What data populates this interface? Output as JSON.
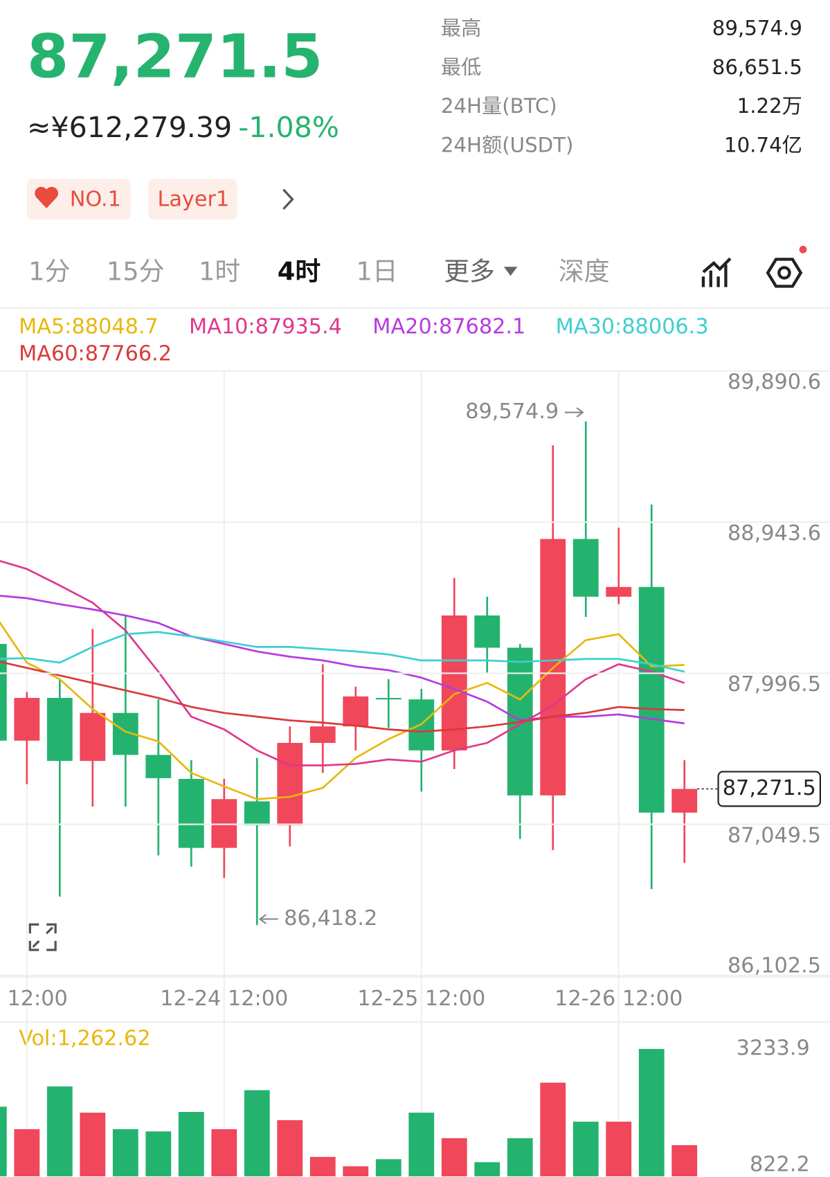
{
  "header": {
    "price": "87,271.5",
    "cny": "≈¥612,279.39",
    "change": "-1.08%",
    "stats": [
      {
        "label": "最高",
        "value": "89,574.9"
      },
      {
        "label": "最低",
        "value": "86,651.5"
      },
      {
        "label": "24H量(BTC)",
        "value": "1.22万"
      },
      {
        "label": "24H额(USDT)",
        "value": "10.74亿"
      }
    ],
    "tags": [
      "NO.1",
      "Layer1"
    ]
  },
  "tabs": [
    "1分",
    "15分",
    "1时",
    "4时",
    "1日",
    "更多",
    "深度"
  ],
  "chart_data": {
    "type": "candlestick",
    "categories": [
      null,
      "12:00",
      null,
      null,
      null,
      null,
      null,
      "12-24 12:00",
      null,
      null,
      null,
      null,
      null,
      "12-25 12:00",
      null,
      null,
      null,
      null,
      null,
      "12-26 12:00",
      null,
      null
    ],
    "open": [
      88180.2,
      87574.0,
      87841.8,
      87447.1,
      87747.9,
      87484.7,
      87334.3,
      86902.0,
      87193.6,
      87043.0,
      87559.9,
      87663.3,
      87841.8,
      87832.6,
      87512.9,
      88358.7,
      88156.6,
      87231.0,
      88838.0,
      88476.2,
      88537.3,
      87122.9
    ],
    "high": [
      88180.2,
      87879.4,
      87959.3,
      88274.1,
      88358.7,
      87832.6,
      87451.8,
      87334.3,
      87465.9,
      87663.3,
      88053.3,
      87912.3,
      87959.3,
      87898.2,
      88593.7,
      88476.2,
      88180.2,
      89425.4,
      89574.9,
      88908.5,
      89054.2,
      87451.8
    ],
    "low": [
      87574.0,
      87301.5,
      86596.6,
      87160.6,
      87160.6,
      86855.0,
      86784.6,
      86714.1,
      86418.2,
      86911.4,
      87371.9,
      87512.9,
      87653.9,
      87254.5,
      87395.4,
      87996.9,
      86958.4,
      86887.9,
      88349.3,
      88429.2,
      86643.6,
      86808.1
    ],
    "close": [
      87574.0,
      87841.8,
      87447.1,
      87747.9,
      87484.7,
      87339.0,
      86902.0,
      87207.6,
      87043.0,
      87559.9,
      87663.3,
      87851.2,
      87832.6,
      87512.9,
      88358.7,
      88156.6,
      87231.0,
      88838.0,
      88476.2,
      88537.3,
      87122.9,
      87271.5
    ],
    "up_color": "#f0475a",
    "down_color": "#24b36f",
    "ylim": [
      86102.5,
      89890.6
    ],
    "yticks": [
      {
        "value": 86102.5,
        "label": "86,102.5"
      },
      {
        "value": 87049.5,
        "label": "87,049.5"
      },
      {
        "value": 87996.5,
        "label": "87,996.5"
      },
      {
        "value": 88943.6,
        "label": "88,943.6"
      },
      {
        "value": 89890.6,
        "label": "89,890.6"
      }
    ],
    "grid": true,
    "series": [
      {
        "name": "MA5:88048.7",
        "color": "#e8b80b",
        "values": [
          88368.1,
          88062.7,
          87959.3,
          87771.4,
          87630.4,
          87569.3,
          87371.9,
          87287.4,
          87207.5,
          87221.6,
          87278.0,
          87465.9,
          87583.4,
          87677.4,
          87865.3,
          87935.8,
          87832.4,
          88029.8,
          88203.7,
          88241.3,
          88039.2,
          88048.7
        ]
      },
      {
        "name": "MA10:87935.4",
        "color": "#e0378f",
        "values": [
          88711.2,
          88650.1,
          88546.7,
          88438.6,
          88264.7,
          88006.3,
          87724.4,
          87644.5,
          87512.9,
          87418.9,
          87418.9,
          87428.3,
          87456.5,
          87442.4,
          87512.9,
          87559.9,
          87677.4,
          87794.8,
          87959.3,
          88053.3,
          88006.3,
          87935.4
        ]
      },
      {
        "name": "MA20:87682.1",
        "color": "#b73ae0",
        "values": [
          88485.6,
          88466.8,
          88429.2,
          88396.3,
          88358.7,
          88311.7,
          88227.2,
          88180.2,
          88133.2,
          88100.3,
          88076.8,
          88039.2,
          88015.7,
          87968.7,
          87898.2,
          87818.3,
          87700.9,
          87724.4,
          87724.4,
          87738.5,
          87710.3,
          87682.1
        ]
      },
      {
        "name": "MA30:88006.3",
        "color": "#3ccfd0",
        "values": [
          88086.2,
          88090.9,
          88062.7,
          88161.4,
          88241.3,
          88255.3,
          88227.2,
          88194.3,
          88161.4,
          88161.4,
          88147.3,
          88133.2,
          88114.4,
          88076.8,
          88076.8,
          88076.8,
          88067.4,
          88076.8,
          88086.2,
          88086.2,
          88053.3,
          88006.3
        ]
      },
      {
        "name": "MA60:87766.2",
        "color": "#d93a3a",
        "values": [
          88076.8,
          88029.8,
          87982.8,
          87935.8,
          87888.8,
          87841.8,
          87785.4,
          87747.9,
          87724.4,
          87700.9,
          87686.8,
          87668.0,
          87644.5,
          87630.4,
          87644.5,
          87663.3,
          87691.5,
          87724.4,
          87747.9,
          87785.4,
          87771.4,
          87766.2
        ]
      }
    ],
    "high_marker": {
      "value": 89574.9,
      "label": "89,574.9"
    },
    "low_marker": {
      "value": 86418.2,
      "label": "86,418.2"
    },
    "last_price": {
      "value": 87271.5,
      "label": "87,271.5"
    },
    "volume": {
      "label": "Vol:1,262.62",
      "values": [
        2051.0,
        1590.2,
        2465.7,
        1928.2,
        1590.2,
        1544.2,
        1943.5,
        1590.2,
        2388.9,
        1774.5,
        1021.9,
        830,
        975.8,
        1928.2,
        1405.9,
        914.4,
        1405.9,
        2542.5,
        1743.8,
        1743.8,
        3233.9,
        1262.62
      ],
      "ylim": [
        822.2,
        3233.9
      ],
      "yticks": [
        822.2,
        3233.9
      ]
    }
  }
}
